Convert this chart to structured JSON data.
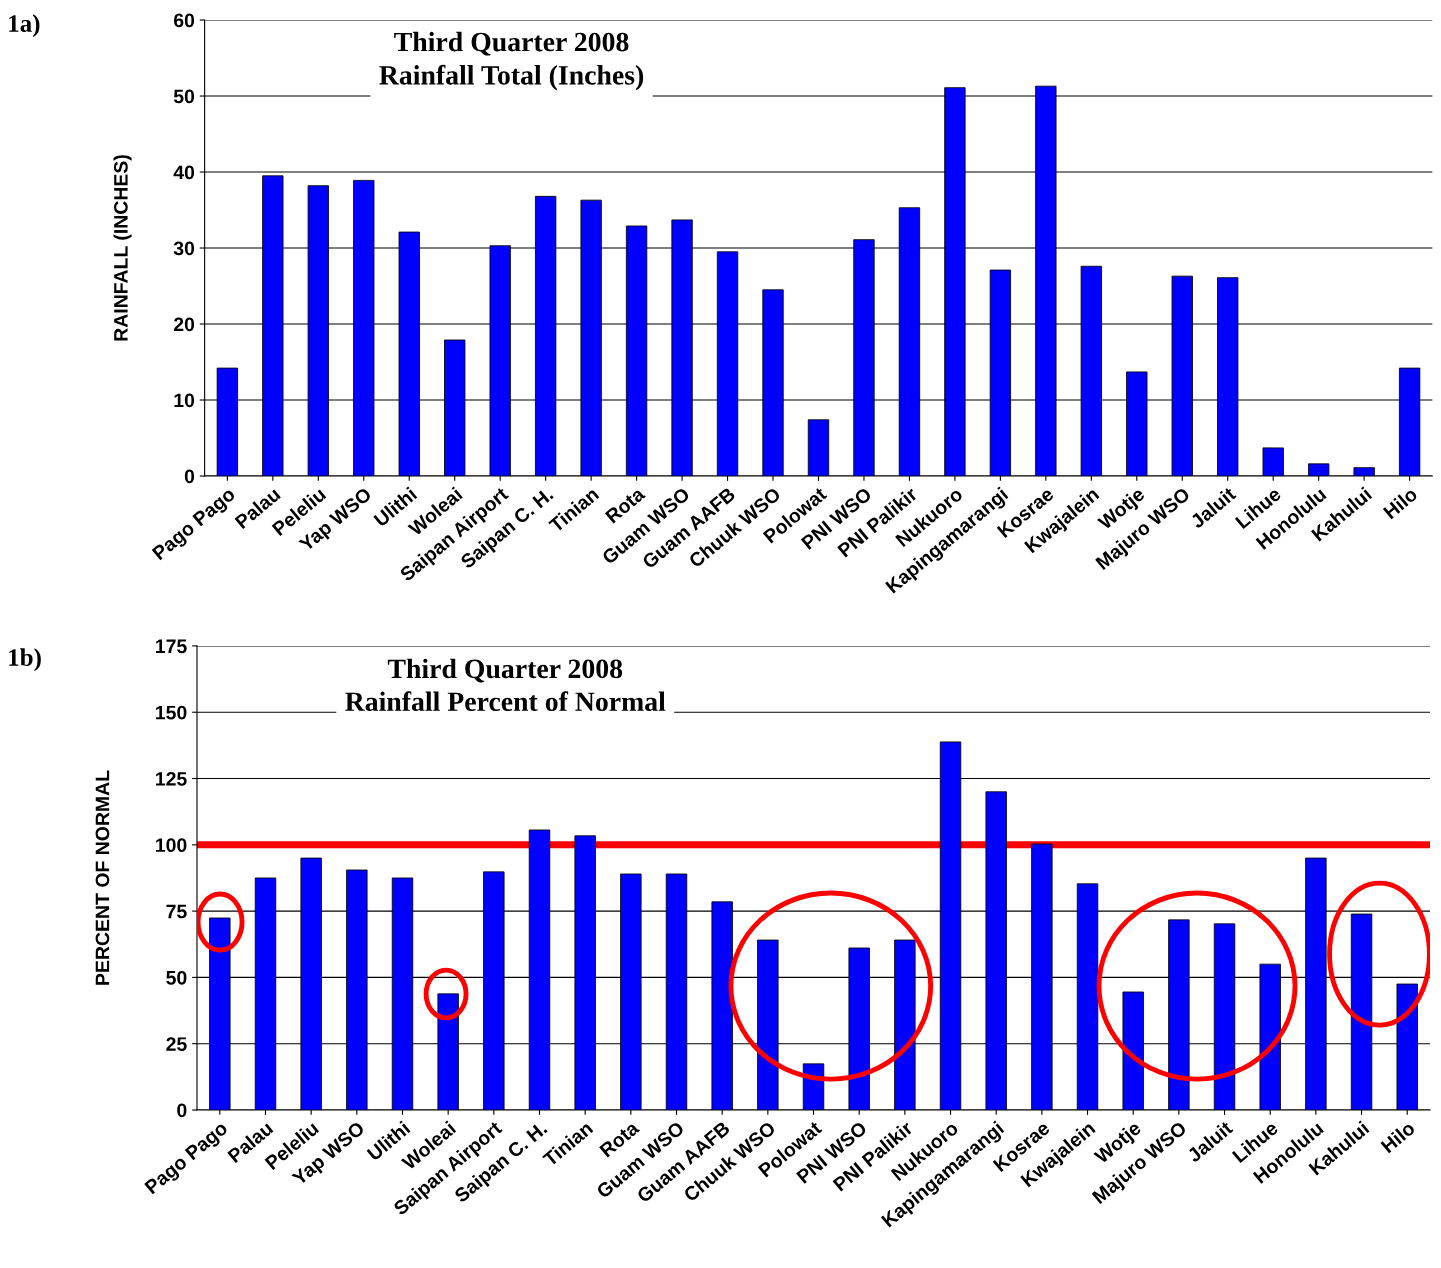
{
  "chart_data": [
    {
      "type": "bar",
      "title": "Third Quarter 2008\nRainfall Total (Inches)",
      "ylabel": "RAINFALL (INCHES)",
      "annotations": [
        "1a)"
      ],
      "categories": [
        "Pago Pago",
        "Palau",
        "Peleliu",
        "Yap WSO",
        "Ulithi",
        "Woleai",
        "Saipan Airport",
        "Saipan C. H.",
        "Tinian",
        "Rota",
        "Guam WSO",
        "Guam AAFB",
        "Chuuk WSO",
        "Polowat",
        "PNI WSO",
        "PNI Palikir",
        "Nukuoro",
        "Kapingamarangi",
        "Kosrae",
        "Kwajalein",
        "Wotje",
        "Majuro WSO",
        "Jaluit",
        "Lihue",
        "Honolulu",
        "Kahului",
        "Hilo"
      ],
      "values": [
        14.2,
        39.5,
        38.2,
        38.9,
        32.1,
        17.9,
        30.3,
        36.8,
        36.3,
        32.9,
        33.7,
        29.5,
        24.5,
        7.4,
        31.1,
        35.3,
        51.1,
        27.1,
        51.3,
        27.6,
        13.7,
        26.3,
        26.1,
        3.7,
        1.6,
        1.1,
        14.2
      ],
      "color": "#0000ff",
      "ylim": [
        0,
        60
      ],
      "yticks": [
        0,
        10,
        20,
        30,
        40,
        50,
        60
      ],
      "grid": "y",
      "legend": false
    },
    {
      "type": "bar",
      "title": "Third Quarter 2008\nRainfall Percent of Normal",
      "ylabel": "PERCENT OF NORMAL",
      "annotations": [
        "1b)"
      ],
      "categories": [
        "Pago Pago",
        "Palau",
        "Peleliu",
        "Yap WSO",
        "Ulithi",
        "Woleai",
        "Saipan Airport",
        "Saipan C. H.",
        "Tinian",
        "Rota",
        "Guam WSO",
        "Guam AAFB",
        "Chuuk WSO",
        "Polowat",
        "PNI WSO",
        "PNI Palikir",
        "Nukuoro",
        "Kapingamarangi",
        "Kosrae",
        "Kwajalein",
        "Wotje",
        "Majuro WSO",
        "Jaluit",
        "Lihue",
        "Honolulu",
        "Kahului",
        "Hilo"
      ],
      "values": [
        72.4,
        87.5,
        95,
        90.5,
        87.5,
        43.8,
        89.8,
        105.6,
        103.4,
        89,
        89,
        78.5,
        64.1,
        17.4,
        61.1,
        64.1,
        138.8,
        120,
        100.3,
        85.3,
        44.5,
        71.7,
        70.2,
        55,
        95,
        73.9,
        47.5
      ],
      "color": "#0000ff",
      "ylim": [
        0,
        175
      ],
      "yticks": [
        0,
        25,
        50,
        75,
        100,
        125,
        150,
        175
      ],
      "grid": "y",
      "legend": false,
      "ref_lines": [
        {
          "axis": "y",
          "value": 100,
          "label": null,
          "color": "#ff0000"
        }
      ]
    }
  ]
}
